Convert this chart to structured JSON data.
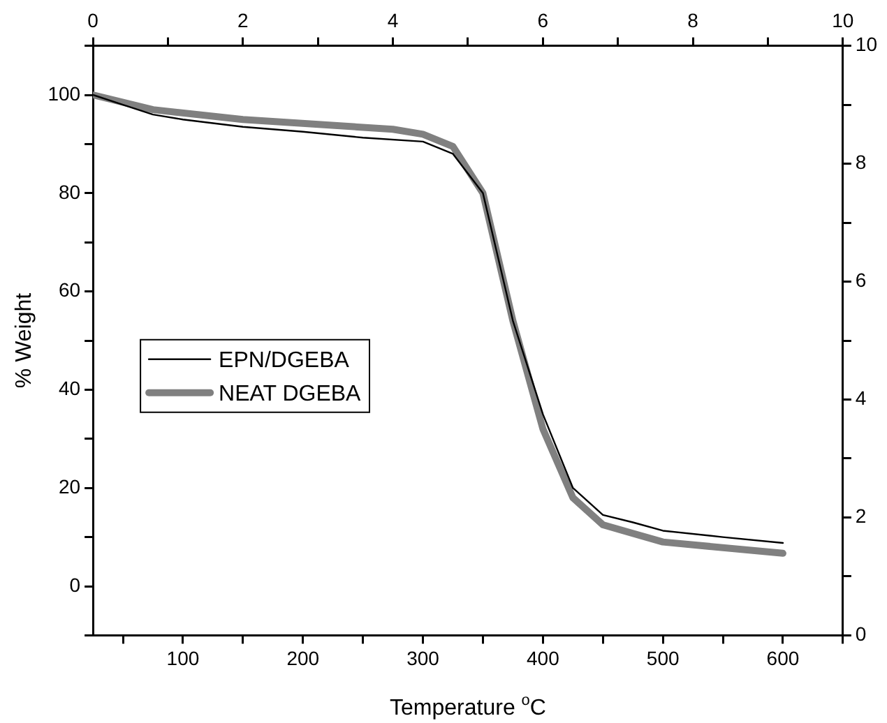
{
  "chart_data": {
    "type": "line",
    "xlabel": "Temperature $^{o}$C",
    "ylabel": "% Weight",
    "xlim": [
      25,
      650
    ],
    "xticks": [
      {
        "value": 50,
        "label": null
      },
      100,
      {
        "value": 150,
        "label": null
      },
      200,
      {
        "value": 250,
        "label": null
      },
      300,
      {
        "value": 350,
        "label": null
      },
      400,
      {
        "value": 450,
        "label": null
      },
      500,
      {
        "value": 550,
        "label": null
      },
      600,
      {
        "value": 650,
        "label": null
      }
    ],
    "ylim": [
      -10,
      110
    ],
    "yticks": [
      {
        "value": -10,
        "label": null
      },
      0,
      {
        "value": 10,
        "label": null
      },
      20,
      {
        "value": 30,
        "label": null
      },
      40,
      {
        "value": 50,
        "label": null
      },
      60,
      {
        "value": 70,
        "label": null
      },
      80,
      {
        "value": 90,
        "label": null
      },
      100,
      {
        "value": 110,
        "label": null
      }
    ],
    "x2lim": [
      0,
      10
    ],
    "x2ticks": [
      0,
      {
        "value": 1,
        "label": null
      },
      2,
      {
        "value": 3,
        "label": null
      },
      4,
      {
        "value": 5,
        "label": null
      },
      6,
      {
        "value": 7,
        "label": null
      },
      8,
      {
        "value": 9,
        "label": null
      },
      10
    ],
    "y2lim": [
      0,
      10
    ],
    "y2ticks": [
      0,
      {
        "value": 1,
        "label": null
      },
      2,
      {
        "value": 3,
        "label": null
      },
      4,
      {
        "value": 5,
        "label": null
      },
      6,
      {
        "value": 7,
        "label": null
      },
      8,
      {
        "value": 9,
        "label": null
      },
      10
    ],
    "legend": "left",
    "grid": false,
    "marker": "none",
    "series": [
      {
        "name": "EPN/DGEBA",
        "color": "#000000",
        "x": [
          25,
          50,
          75,
          100,
          150,
          200,
          250,
          300,
          325,
          350,
          375,
          400,
          425,
          450,
          475,
          500,
          550,
          600
        ],
        "values": [
          100,
          98,
          96,
          95,
          93.5,
          92.5,
          91.3,
          90.5,
          88,
          80,
          54,
          35,
          20,
          14.5,
          13,
          11.3,
          10,
          8.8
        ]
      },
      {
        "name": "NEAT DGEBA",
        "color": "#808080",
        "x": [
          25,
          75,
          150,
          275,
          300,
          325,
          350,
          375,
          400,
          425,
          450,
          500,
          600
        ],
        "values": [
          100,
          97,
          95,
          93,
          92,
          89.5,
          80,
          54,
          32,
          18,
          12.5,
          9,
          6.7
        ]
      }
    ]
  }
}
